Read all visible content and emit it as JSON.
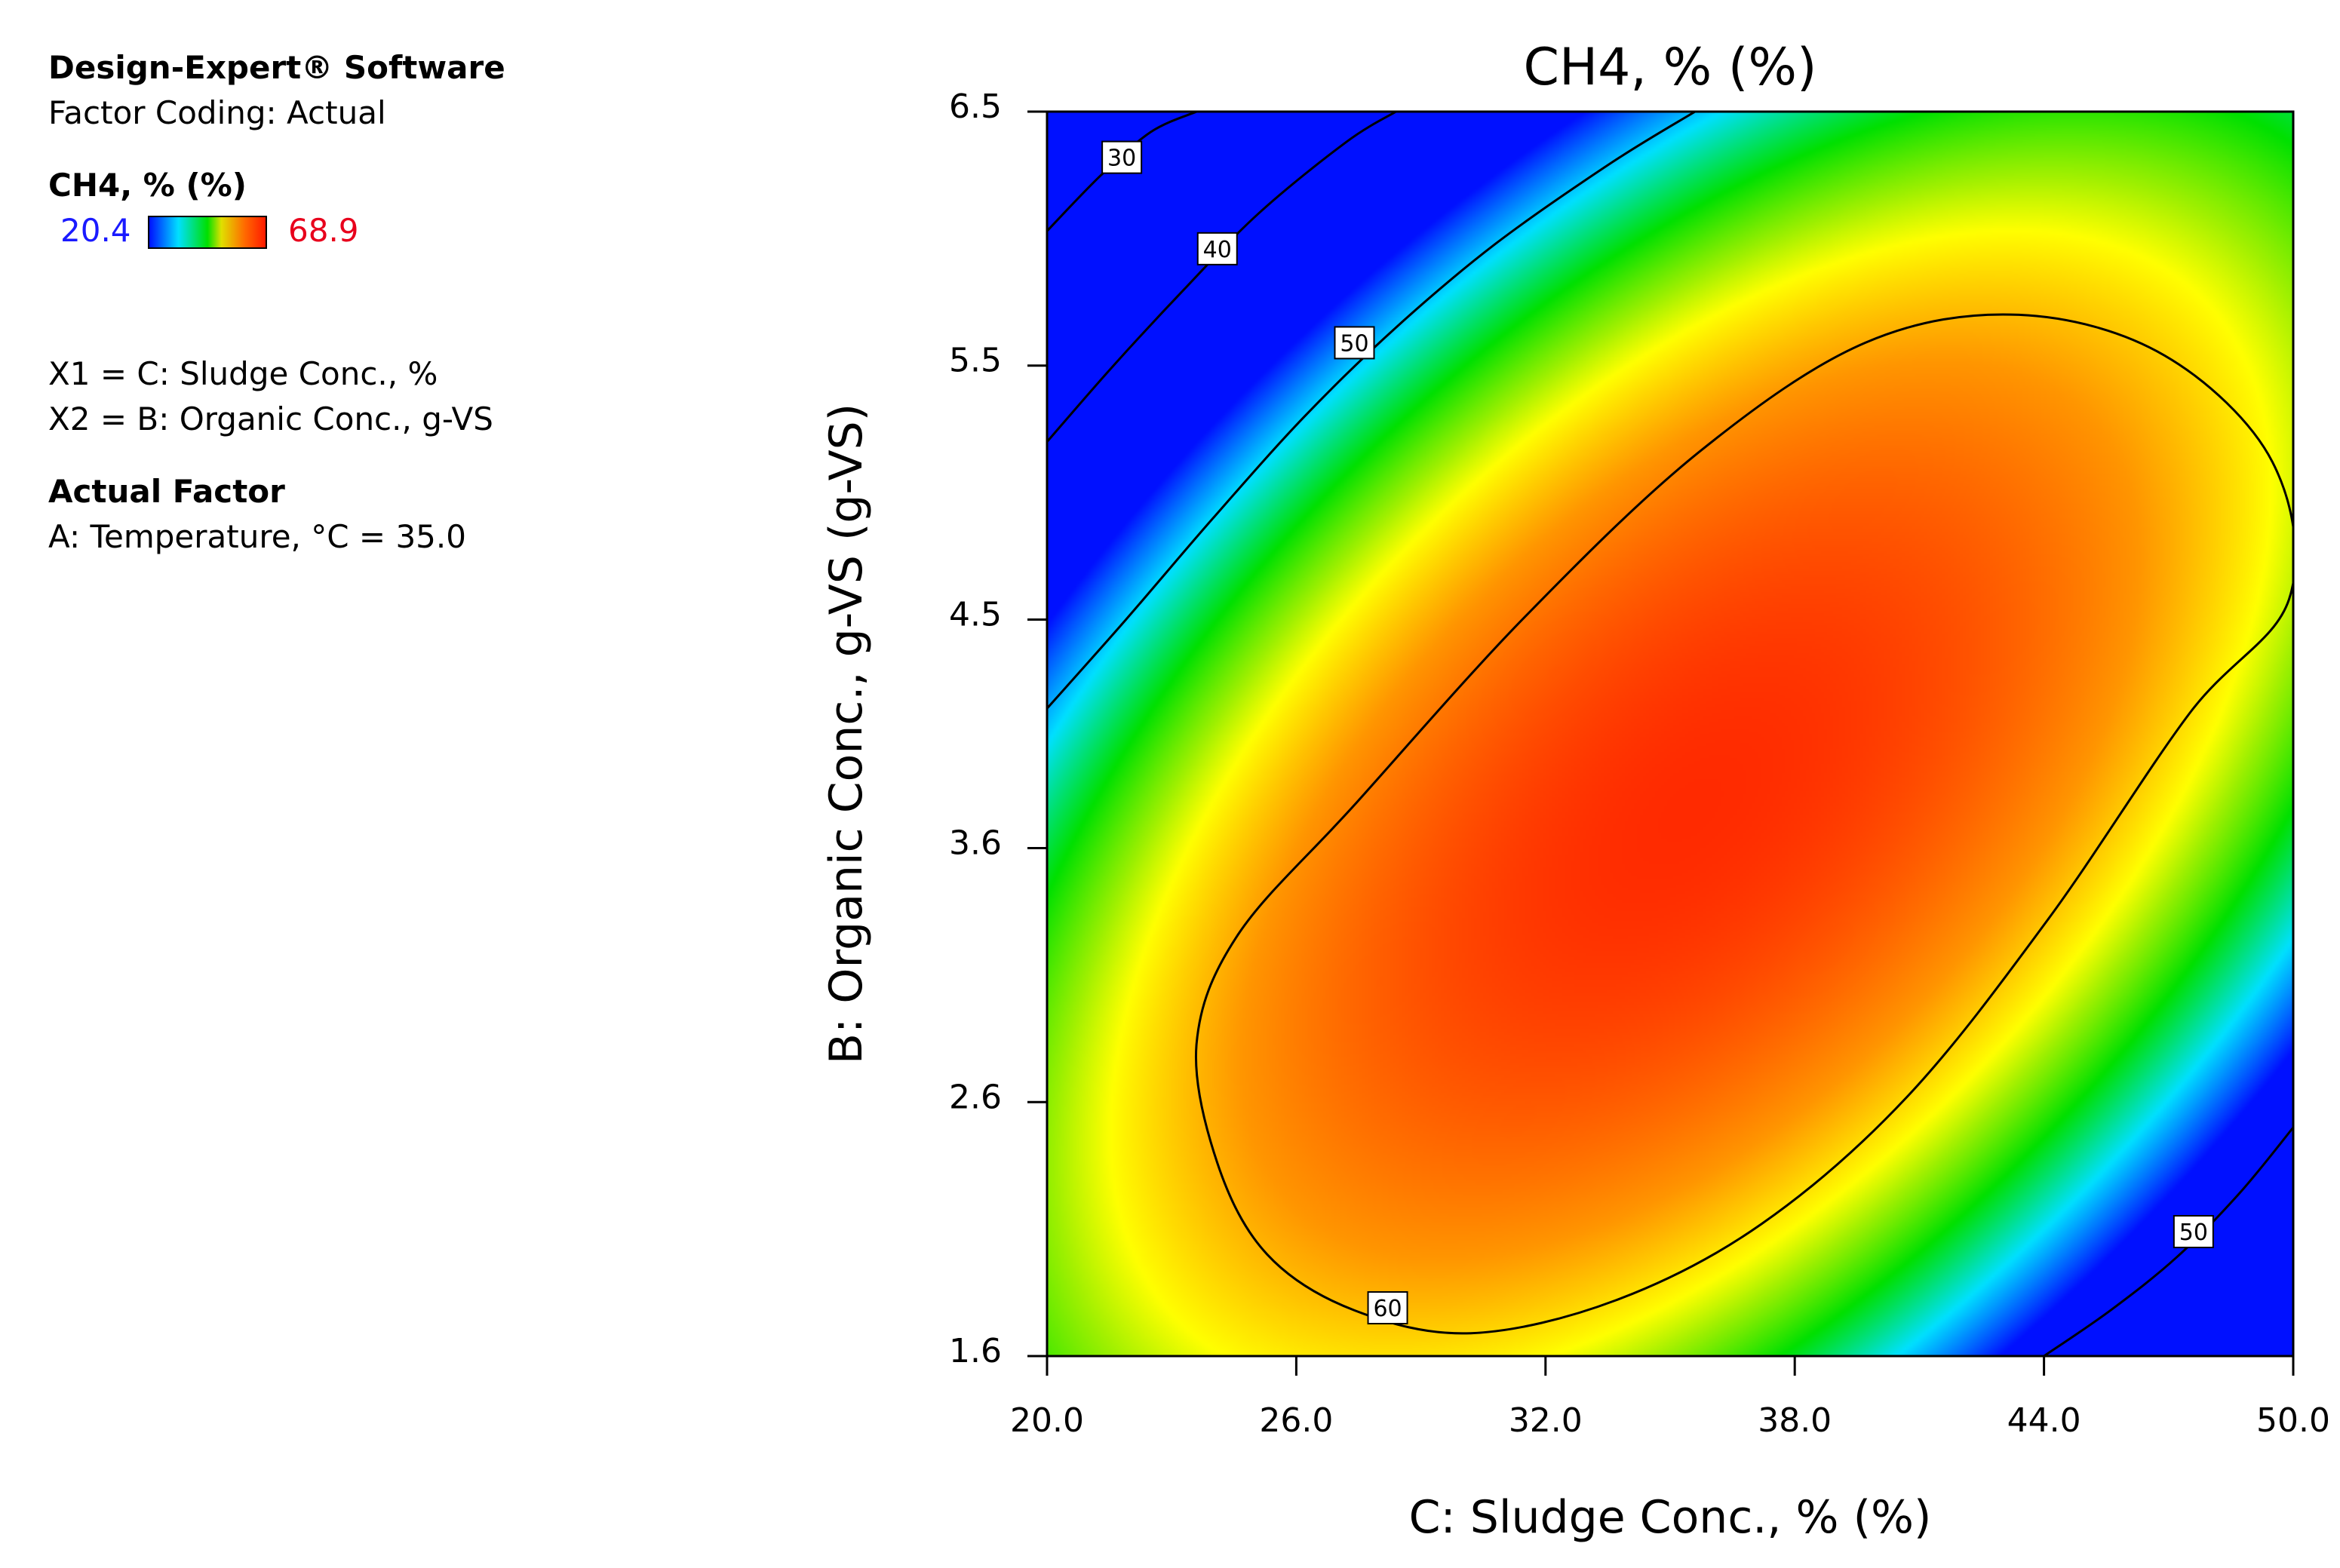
{
  "legend": {
    "software": "Design-Expert® Software",
    "coding": "Factor Coding: Actual",
    "response_name": "CH4, % (%)",
    "scale_min": "20.4",
    "scale_max": "68.9",
    "scale_min_color": "#1a1aff",
    "scale_max_color": "#e8001c",
    "x1": "X1 = C: Sludge Conc., %",
    "x2": "X2 = B: Organic Conc., g-VS",
    "actual_factor_heading": "Actual Factor",
    "actual_factor": "A: Temperature, °C = 35.0"
  },
  "chart_data": {
    "type": "contour",
    "title": "CH4, % (%)",
    "xlabel": "C: Sludge Conc., % (%)",
    "ylabel": "B: Organic Conc., g-VS (g-VS)",
    "xlim": [
      20.0,
      50.0
    ],
    "ylim": [
      1.6,
      6.5
    ],
    "x_ticks": [
      "20.0",
      "26.0",
      "32.0",
      "38.0",
      "44.0",
      "50.0"
    ],
    "y_ticks": [
      "1.6",
      "2.6",
      "3.6",
      "4.5",
      "5.5",
      "6.5"
    ],
    "y_tick_values": [
      1.6,
      2.6,
      3.6,
      4.5,
      5.5,
      6.5
    ],
    "response_range": [
      20.4,
      68.9
    ],
    "contour_levels": [
      30,
      40,
      50,
      60
    ],
    "contour_labels": [
      {
        "text": "30",
        "x": 21.8,
        "y": 6.32
      },
      {
        "text": "40",
        "x": 24.1,
        "y": 5.96
      },
      {
        "text": "50",
        "x": 27.4,
        "y": 5.59
      },
      {
        "text": "60",
        "x": 28.2,
        "y": 1.79
      },
      {
        "text": "50",
        "x": 47.6,
        "y": 2.09
      }
    ],
    "contour_lines": [
      {
        "level": 30,
        "points": [
          [
            20.0,
            6.03
          ],
          [
            21.3,
            6.25
          ],
          [
            22.5,
            6.42
          ],
          [
            23.6,
            6.5
          ]
        ]
      },
      {
        "level": 40,
        "points": [
          [
            20.0,
            5.2
          ],
          [
            21.6,
            5.5
          ],
          [
            23.3,
            5.8
          ],
          [
            25.1,
            6.1
          ],
          [
            27.2,
            6.38
          ],
          [
            28.4,
            6.5
          ]
        ]
      },
      {
        "level": 50,
        "points": [
          [
            20.0,
            4.15
          ],
          [
            21.9,
            4.5
          ],
          [
            24.0,
            4.9
          ],
          [
            26.2,
            5.3
          ],
          [
            28.4,
            5.65
          ],
          [
            30.8,
            5.98
          ],
          [
            33.6,
            6.3
          ],
          [
            35.6,
            6.5
          ]
        ]
      },
      {
        "level": 60,
        "closed": true,
        "points": [
          [
            23.6,
            2.83
          ],
          [
            24.1,
            2.36
          ],
          [
            25.3,
            2.0
          ],
          [
            27.4,
            1.78
          ],
          [
            30.2,
            1.69
          ],
          [
            33.7,
            1.82
          ],
          [
            37.2,
            2.12
          ],
          [
            40.7,
            2.62
          ],
          [
            44.1,
            3.32
          ],
          [
            47.5,
            4.13
          ],
          [
            49.9,
            4.58
          ],
          [
            49.5,
            5.12
          ],
          [
            46.9,
            5.54
          ],
          [
            43.4,
            5.7
          ],
          [
            39.7,
            5.59
          ],
          [
            35.7,
            5.16
          ],
          [
            31.5,
            4.51
          ],
          [
            27.4,
            3.77
          ],
          [
            24.6,
            3.26
          ]
        ]
      },
      {
        "level": 50,
        "points": [
          [
            44.0,
            1.6
          ],
          [
            45.6,
            1.78
          ],
          [
            47.2,
            1.99
          ],
          [
            48.7,
            2.24
          ],
          [
            50.0,
            2.5
          ]
        ]
      }
    ],
    "color_field": {
      "peak": [
        35.5,
        3.75
      ],
      "colormap": [
        "#0010ff",
        "#00e0ff",
        "#00e000",
        "#ffff00",
        "#ff8c00",
        "#ff2a00"
      ]
    }
  }
}
